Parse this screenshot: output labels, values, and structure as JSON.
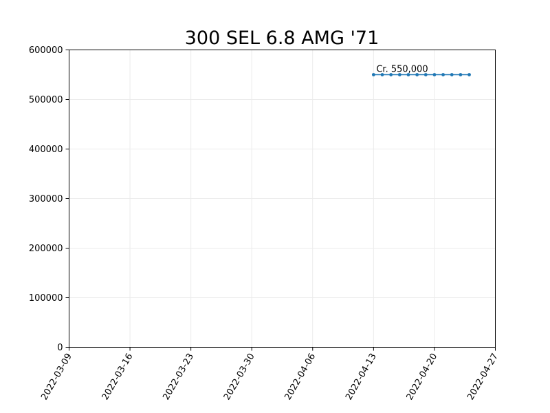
{
  "chart_data": {
    "type": "line",
    "title": "300 SEL 6.8 AMG '71",
    "xlabel": "",
    "ylabel": "",
    "x_type": "date",
    "xlim": [
      "2022-03-09",
      "2022-04-27"
    ],
    "ylim": [
      0,
      600000
    ],
    "x_ticks": [
      "2022-03-09",
      "2022-03-16",
      "2022-03-23",
      "2022-03-30",
      "2022-04-06",
      "2022-04-13",
      "2022-04-20",
      "2022-04-27"
    ],
    "y_ticks": [
      0,
      100000,
      200000,
      300000,
      400000,
      500000,
      600000
    ],
    "grid": true,
    "series": [
      {
        "color": "#1f77b4",
        "marker": "circle",
        "x": [
          "2022-04-13",
          "2022-04-14",
          "2022-04-15",
          "2022-04-16",
          "2022-04-17",
          "2022-04-18",
          "2022-04-19",
          "2022-04-20",
          "2022-04-21",
          "2022-04-22",
          "2022-04-23",
          "2022-04-24"
        ],
        "y": [
          550000,
          550000,
          550000,
          550000,
          550000,
          550000,
          550000,
          550000,
          550000,
          550000,
          550000,
          550000
        ]
      }
    ],
    "annotations": [
      {
        "text": "Cr. 550,000",
        "x": "2022-04-13",
        "y": 550000
      }
    ]
  }
}
